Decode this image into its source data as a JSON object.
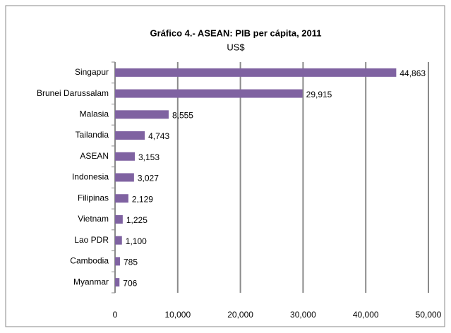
{
  "chart_data": {
    "type": "barh",
    "title": "Gráfico 4.- ASEAN: PIB per cápita, 2011",
    "subtitle": "US$",
    "categories": [
      "Singapur",
      "Brunei Darussalam",
      "Malasia",
      "Tailandia",
      "ASEAN",
      "Indonesia",
      "Filipinas",
      "Vietnam",
      "Lao PDR",
      "Cambodia",
      "Myanmar"
    ],
    "values": [
      44863,
      29915,
      8555,
      4743,
      3153,
      3027,
      2129,
      1225,
      1100,
      785,
      706
    ],
    "value_labels": [
      "44,863",
      "29,915",
      "8,555",
      "4,743",
      "3,153",
      "3,027",
      "2,129",
      "1,225",
      "1,100",
      "785",
      "706"
    ],
    "color": "#7f62a1",
    "xlim": [
      0,
      50000
    ],
    "xticks": [
      0,
      {
        "value": 10000,
        "label": "10,000"
      },
      {
        "value": 20000,
        "label": "20,000"
      },
      {
        "value": 30000,
        "label": "30,000"
      },
      {
        "value": 40000,
        "label": "40,000"
      },
      {
        "value": 50000,
        "label": "50,000"
      }
    ],
    "grid": true
  }
}
